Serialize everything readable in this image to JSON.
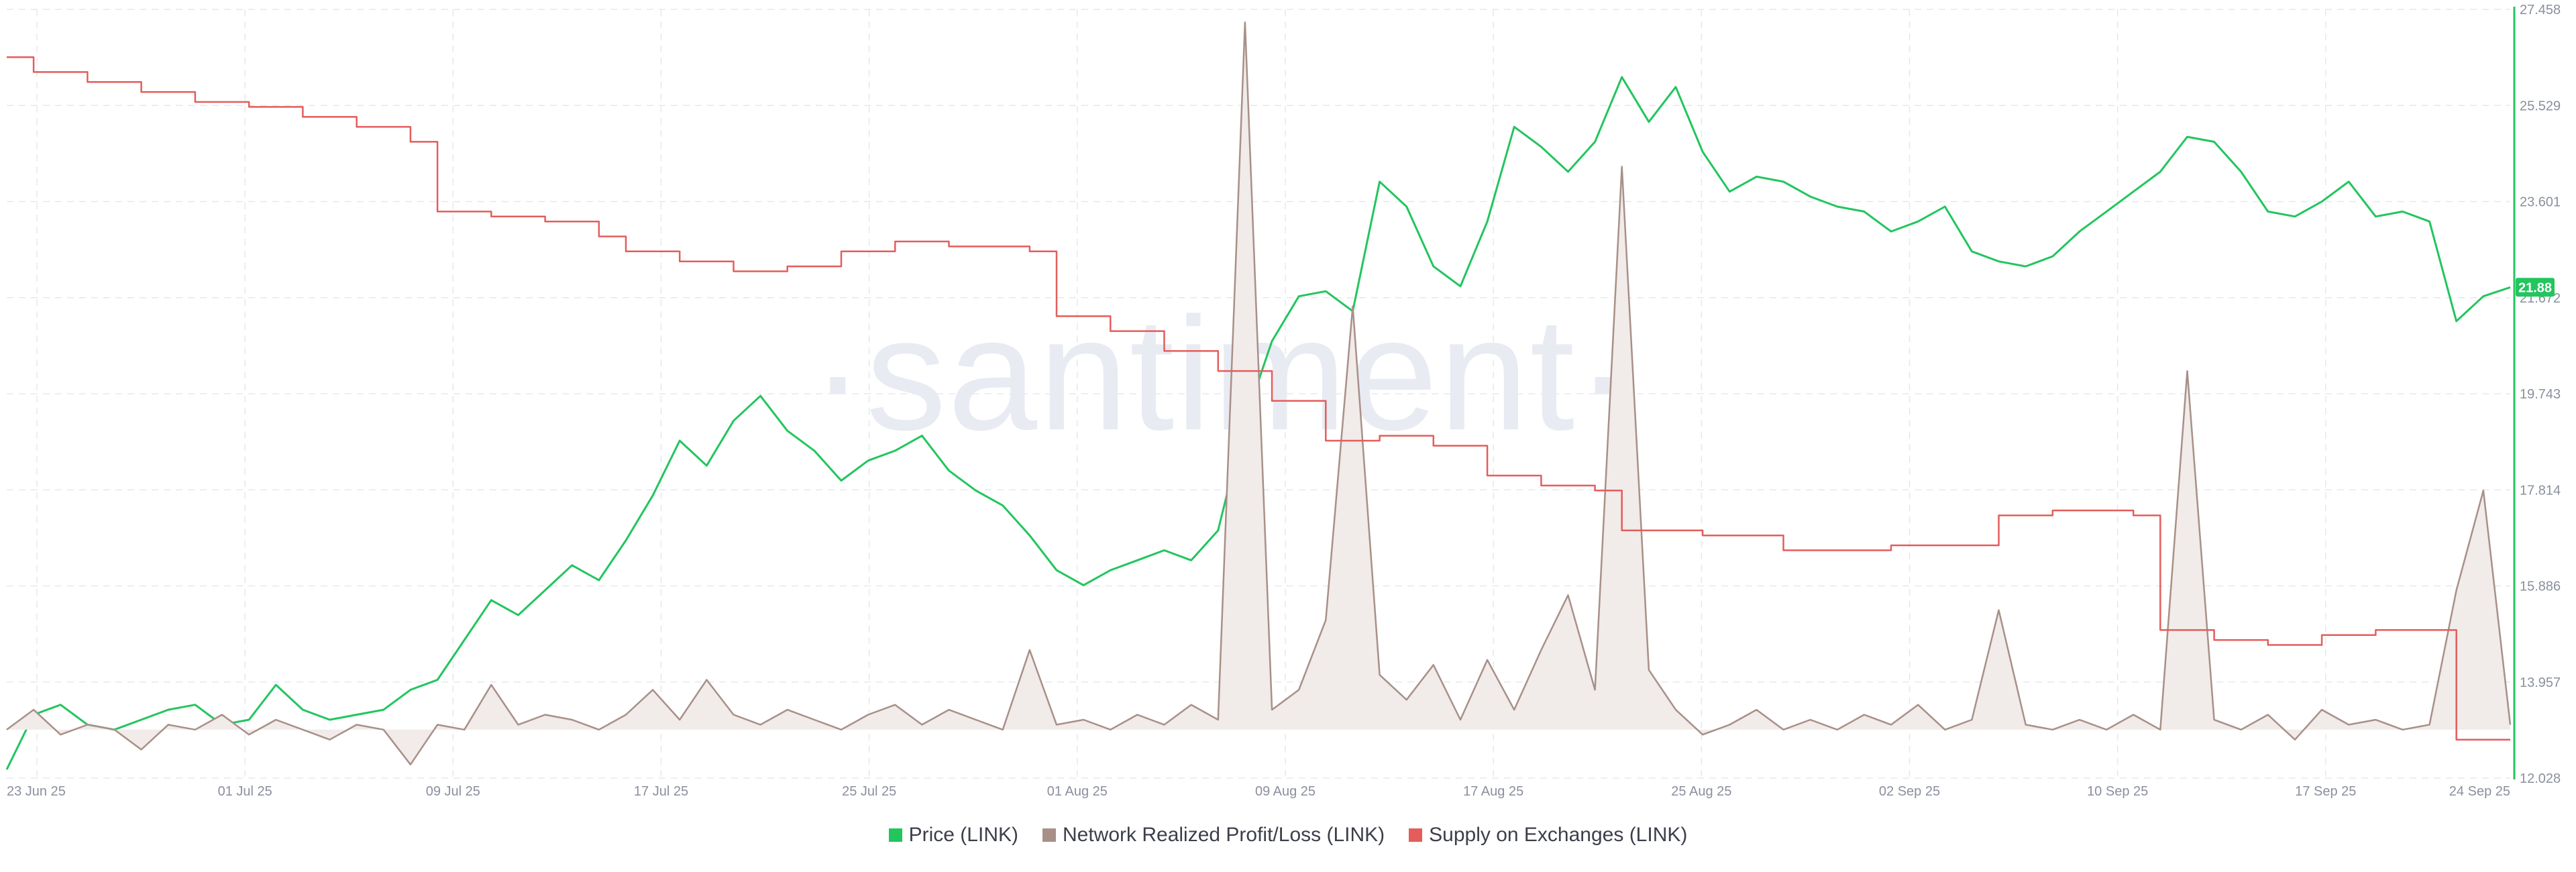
{
  "watermark": "·santiment·",
  "chart_data": {
    "type": "line",
    "x_tick_labels": [
      "23 Jun 25",
      "01 Jul 25",
      "09 Jul 25",
      "17 Jul 25",
      "25 Jul 25",
      "01 Aug 25",
      "09 Aug 25",
      "17 Aug 25",
      "25 Aug 25",
      "02 Sep 25",
      "10 Sep 25",
      "17 Sep 25",
      "24 Sep 25"
    ],
    "x_range": [
      "2025-06-23",
      "2025-09-24"
    ],
    "y_tick_labels": [
      "27.458",
      "25.529",
      "23.601",
      "21.672",
      "19.743",
      "17.814",
      "15.886",
      "13.957",
      "12.028"
    ],
    "ylim": [
      12.028,
      27.458
    ],
    "grid": true,
    "legend_position": "bottom-center",
    "current_price_badge": "21.88",
    "series": [
      {
        "name": "Price (LINK)",
        "color": "#22c55e",
        "axis": "right",
        "points": [
          [
            "2025-06-23",
            12.2
          ],
          [
            "2025-06-24",
            13.3
          ],
          [
            "2025-06-25",
            13.5
          ],
          [
            "2025-06-26",
            13.1
          ],
          [
            "2025-06-27",
            13.0
          ],
          [
            "2025-06-28",
            13.2
          ],
          [
            "2025-06-29",
            13.4
          ],
          [
            "2025-06-30",
            13.5
          ],
          [
            "2025-07-01",
            13.1
          ],
          [
            "2025-07-02",
            13.2
          ],
          [
            "2025-07-03",
            13.9
          ],
          [
            "2025-07-04",
            13.4
          ],
          [
            "2025-07-05",
            13.2
          ],
          [
            "2025-07-06",
            13.3
          ],
          [
            "2025-07-07",
            13.4
          ],
          [
            "2025-07-08",
            13.8
          ],
          [
            "2025-07-09",
            14.0
          ],
          [
            "2025-07-10",
            14.8
          ],
          [
            "2025-07-11",
            15.6
          ],
          [
            "2025-07-12",
            15.3
          ],
          [
            "2025-07-13",
            15.8
          ],
          [
            "2025-07-14",
            16.3
          ],
          [
            "2025-07-15",
            16.0
          ],
          [
            "2025-07-16",
            16.8
          ],
          [
            "2025-07-17",
            17.7
          ],
          [
            "2025-07-18",
            18.8
          ],
          [
            "2025-07-19",
            18.3
          ],
          [
            "2025-07-20",
            19.2
          ],
          [
            "2025-07-21",
            19.7
          ],
          [
            "2025-07-22",
            19.0
          ],
          [
            "2025-07-23",
            18.6
          ],
          [
            "2025-07-24",
            18.0
          ],
          [
            "2025-07-25",
            18.4
          ],
          [
            "2025-07-26",
            18.6
          ],
          [
            "2025-07-27",
            18.9
          ],
          [
            "2025-07-28",
            18.2
          ],
          [
            "2025-07-29",
            17.8
          ],
          [
            "2025-07-30",
            17.5
          ],
          [
            "2025-07-31",
            16.9
          ],
          [
            "2025-08-01",
            16.2
          ],
          [
            "2025-08-02",
            15.9
          ],
          [
            "2025-08-03",
            16.2
          ],
          [
            "2025-08-04",
            16.4
          ],
          [
            "2025-08-05",
            16.6
          ],
          [
            "2025-08-06",
            16.4
          ],
          [
            "2025-08-07",
            17.0
          ],
          [
            "2025-08-08",
            19.2
          ],
          [
            "2025-08-09",
            20.8
          ],
          [
            "2025-08-10",
            21.7
          ],
          [
            "2025-08-11",
            21.8
          ],
          [
            "2025-08-12",
            21.4
          ],
          [
            "2025-08-13",
            24.0
          ],
          [
            "2025-08-14",
            23.5
          ],
          [
            "2025-08-15",
            22.3
          ],
          [
            "2025-08-16",
            21.9
          ],
          [
            "2025-08-17",
            23.2
          ],
          [
            "2025-08-18",
            25.1
          ],
          [
            "2025-08-19",
            24.7
          ],
          [
            "2025-08-20",
            24.2
          ],
          [
            "2025-08-21",
            24.8
          ],
          [
            "2025-08-22",
            26.1
          ],
          [
            "2025-08-23",
            25.2
          ],
          [
            "2025-08-24",
            25.9
          ],
          [
            "2025-08-25",
            24.6
          ],
          [
            "2025-08-26",
            23.8
          ],
          [
            "2025-08-27",
            24.1
          ],
          [
            "2025-08-28",
            24.0
          ],
          [
            "2025-08-29",
            23.7
          ],
          [
            "2025-08-30",
            23.5
          ],
          [
            "2025-08-31",
            23.4
          ],
          [
            "2025-09-01",
            23.0
          ],
          [
            "2025-09-02",
            23.2
          ],
          [
            "2025-09-03",
            23.5
          ],
          [
            "2025-09-04",
            22.6
          ],
          [
            "2025-09-05",
            22.4
          ],
          [
            "2025-09-06",
            22.3
          ],
          [
            "2025-09-07",
            22.5
          ],
          [
            "2025-09-08",
            23.0
          ],
          [
            "2025-09-09",
            23.4
          ],
          [
            "2025-09-10",
            23.8
          ],
          [
            "2025-09-11",
            24.2
          ],
          [
            "2025-09-12",
            24.9
          ],
          [
            "2025-09-13",
            24.8
          ],
          [
            "2025-09-14",
            24.2
          ],
          [
            "2025-09-15",
            23.4
          ],
          [
            "2025-09-16",
            23.3
          ],
          [
            "2025-09-17",
            23.6
          ],
          [
            "2025-09-18",
            24.0
          ],
          [
            "2025-09-19",
            23.3
          ],
          [
            "2025-09-20",
            23.4
          ],
          [
            "2025-09-21",
            23.2
          ],
          [
            "2025-09-22",
            21.2
          ],
          [
            "2025-09-23",
            21.7
          ],
          [
            "2025-09-24",
            21.88
          ]
        ]
      },
      {
        "name": "Network Realized Profit/Loss (LINK)",
        "color": "#a89088",
        "fill": "#f1ebe9",
        "baseline": 13.0,
        "points": [
          [
            "2025-06-23",
            13.0
          ],
          [
            "2025-06-24",
            13.4
          ],
          [
            "2025-06-25",
            12.9
          ],
          [
            "2025-06-26",
            13.1
          ],
          [
            "2025-06-27",
            13.0
          ],
          [
            "2025-06-28",
            12.6
          ],
          [
            "2025-06-29",
            13.1
          ],
          [
            "2025-06-30",
            13.0
          ],
          [
            "2025-07-01",
            13.3
          ],
          [
            "2025-07-02",
            12.9
          ],
          [
            "2025-07-03",
            13.2
          ],
          [
            "2025-07-04",
            13.0
          ],
          [
            "2025-07-05",
            12.8
          ],
          [
            "2025-07-06",
            13.1
          ],
          [
            "2025-07-07",
            13.0
          ],
          [
            "2025-07-08",
            12.3
          ],
          [
            "2025-07-09",
            13.1
          ],
          [
            "2025-07-10",
            13.0
          ],
          [
            "2025-07-11",
            13.9
          ],
          [
            "2025-07-12",
            13.1
          ],
          [
            "2025-07-13",
            13.3
          ],
          [
            "2025-07-14",
            13.2
          ],
          [
            "2025-07-15",
            13.0
          ],
          [
            "2025-07-16",
            13.3
          ],
          [
            "2025-07-17",
            13.8
          ],
          [
            "2025-07-18",
            13.2
          ],
          [
            "2025-07-19",
            14.0
          ],
          [
            "2025-07-20",
            13.3
          ],
          [
            "2025-07-21",
            13.1
          ],
          [
            "2025-07-22",
            13.4
          ],
          [
            "2025-07-23",
            13.2
          ],
          [
            "2025-07-24",
            13.0
          ],
          [
            "2025-07-25",
            13.3
          ],
          [
            "2025-07-26",
            13.5
          ],
          [
            "2025-07-27",
            13.1
          ],
          [
            "2025-07-28",
            13.4
          ],
          [
            "2025-07-29",
            13.2
          ],
          [
            "2025-07-30",
            13.0
          ],
          [
            "2025-07-31",
            14.6
          ],
          [
            "2025-08-01",
            13.1
          ],
          [
            "2025-08-02",
            13.2
          ],
          [
            "2025-08-03",
            13.0
          ],
          [
            "2025-08-04",
            13.3
          ],
          [
            "2025-08-05",
            13.1
          ],
          [
            "2025-08-06",
            13.5
          ],
          [
            "2025-08-07",
            13.2
          ],
          [
            "2025-08-08",
            27.2
          ],
          [
            "2025-08-09",
            13.4
          ],
          [
            "2025-08-10",
            13.8
          ],
          [
            "2025-08-11",
            15.2
          ],
          [
            "2025-08-12",
            21.5
          ],
          [
            "2025-08-13",
            14.1
          ],
          [
            "2025-08-14",
            13.6
          ],
          [
            "2025-08-15",
            14.3
          ],
          [
            "2025-08-16",
            13.2
          ],
          [
            "2025-08-17",
            14.4
          ],
          [
            "2025-08-18",
            13.4
          ],
          [
            "2025-08-19",
            14.6
          ],
          [
            "2025-08-20",
            15.7
          ],
          [
            "2025-08-21",
            13.8
          ],
          [
            "2025-08-22",
            24.3
          ],
          [
            "2025-08-23",
            14.2
          ],
          [
            "2025-08-24",
            13.4
          ],
          [
            "2025-08-25",
            12.9
          ],
          [
            "2025-08-26",
            13.1
          ],
          [
            "2025-08-27",
            13.4
          ],
          [
            "2025-08-28",
            13.0
          ],
          [
            "2025-08-29",
            13.2
          ],
          [
            "2025-08-30",
            13.0
          ],
          [
            "2025-08-31",
            13.3
          ],
          [
            "2025-09-01",
            13.1
          ],
          [
            "2025-09-02",
            13.5
          ],
          [
            "2025-09-03",
            13.0
          ],
          [
            "2025-09-04",
            13.2
          ],
          [
            "2025-09-05",
            15.4
          ],
          [
            "2025-09-06",
            13.1
          ],
          [
            "2025-09-07",
            13.0
          ],
          [
            "2025-09-08",
            13.2
          ],
          [
            "2025-09-09",
            13.0
          ],
          [
            "2025-09-10",
            13.3
          ],
          [
            "2025-09-11",
            13.0
          ],
          [
            "2025-09-12",
            20.2
          ],
          [
            "2025-09-13",
            13.2
          ],
          [
            "2025-09-14",
            13.0
          ],
          [
            "2025-09-15",
            13.3
          ],
          [
            "2025-09-16",
            12.8
          ],
          [
            "2025-09-17",
            13.4
          ],
          [
            "2025-09-18",
            13.1
          ],
          [
            "2025-09-19",
            13.2
          ],
          [
            "2025-09-20",
            13.0
          ],
          [
            "2025-09-21",
            13.1
          ],
          [
            "2025-09-22",
            15.8
          ],
          [
            "2025-09-23",
            17.8
          ],
          [
            "2025-09-24",
            13.1
          ]
        ]
      },
      {
        "name": "Supply on Exchanges (LINK)",
        "color": "#e35d5b",
        "step": true,
        "points": [
          [
            "2025-06-23",
            26.5
          ],
          [
            "2025-06-24",
            26.2
          ],
          [
            "2025-06-26",
            26.0
          ],
          [
            "2025-06-28",
            25.8
          ],
          [
            "2025-06-30",
            25.6
          ],
          [
            "2025-07-02",
            25.5
          ],
          [
            "2025-07-04",
            25.3
          ],
          [
            "2025-07-06",
            25.1
          ],
          [
            "2025-07-08",
            24.8
          ],
          [
            "2025-07-09",
            23.4
          ],
          [
            "2025-07-11",
            23.3
          ],
          [
            "2025-07-13",
            23.2
          ],
          [
            "2025-07-15",
            22.9
          ],
          [
            "2025-07-16",
            22.6
          ],
          [
            "2025-07-18",
            22.4
          ],
          [
            "2025-07-20",
            22.2
          ],
          [
            "2025-07-22",
            22.3
          ],
          [
            "2025-07-24",
            22.6
          ],
          [
            "2025-07-26",
            22.8
          ],
          [
            "2025-07-28",
            22.7
          ],
          [
            "2025-07-31",
            22.6
          ],
          [
            "2025-08-01",
            21.3
          ],
          [
            "2025-08-03",
            21.0
          ],
          [
            "2025-08-05",
            20.6
          ],
          [
            "2025-08-07",
            20.2
          ],
          [
            "2025-08-09",
            19.6
          ],
          [
            "2025-08-11",
            18.8
          ],
          [
            "2025-08-13",
            18.9
          ],
          [
            "2025-08-15",
            18.7
          ],
          [
            "2025-08-17",
            18.1
          ],
          [
            "2025-08-19",
            17.9
          ],
          [
            "2025-08-21",
            17.8
          ],
          [
            "2025-08-22",
            17.0
          ],
          [
            "2025-08-25",
            16.9
          ],
          [
            "2025-08-28",
            16.6
          ],
          [
            "2025-09-01",
            16.7
          ],
          [
            "2025-09-05",
            17.3
          ],
          [
            "2025-09-07",
            17.4
          ],
          [
            "2025-09-10",
            17.3
          ],
          [
            "2025-09-11",
            15.0
          ],
          [
            "2025-09-13",
            14.8
          ],
          [
            "2025-09-15",
            14.7
          ],
          [
            "2025-09-17",
            14.9
          ],
          [
            "2025-09-19",
            15.0
          ],
          [
            "2025-09-22",
            12.8
          ],
          [
            "2025-09-24",
            12.8
          ]
        ]
      }
    ]
  }
}
